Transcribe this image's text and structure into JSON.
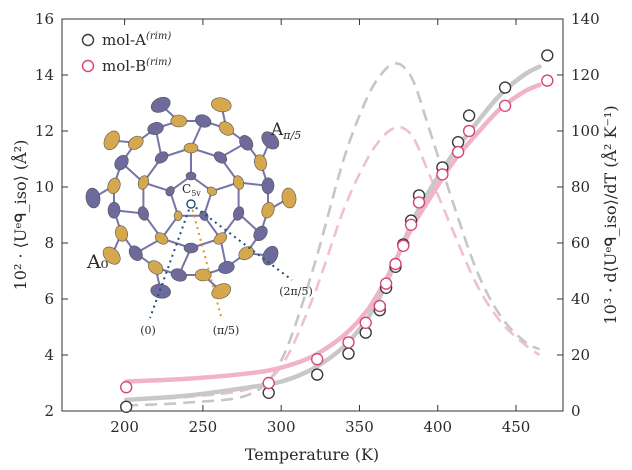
{
  "chart_data": {
    "type": "scatter",
    "xlabel": "Temperature (K)",
    "ylabel_left": "10² · ⟨Uᵉᑫ_iso⟩ (Å²)",
    "ylabel_right": "10³ · d⟨Uᵉᑫ_iso⟩/dT (Å² K⁻¹)",
    "xlim": [
      160,
      480
    ],
    "ylim_left": [
      2,
      16
    ],
    "ylim_right": [
      0,
      140
    ],
    "x_ticks": [
      "200",
      "250",
      "300",
      "350",
      "400",
      "450"
    ],
    "y_ticks_left": [
      "2",
      "4",
      "6",
      "8",
      "10",
      "12",
      "14",
      "16"
    ],
    "y_ticks_right": [
      "0",
      "20",
      "40",
      "60",
      "80",
      "100",
      "120",
      "140"
    ],
    "grid": false,
    "legend_position": "top-left",
    "colors": {
      "mol_A": "#3a3a3a",
      "mol_B": "#d6467a",
      "fit_A": "#c8c8c8",
      "fit_B": "#f0b4c6",
      "deriv_A": "#c6c6c6",
      "deriv_B": "#f0c0cf",
      "atom_gold": "#d6a84e",
      "atom_purple": "#6f6a9c",
      "bond": "#7775a8"
    },
    "series": [
      {
        "name": "mol-A",
        "name_sup": "(rim)",
        "marker": "open-circle",
        "axis": "left",
        "x": [
          201,
          292,
          323,
          343,
          354,
          363,
          367,
          373,
          378,
          383,
          388,
          403,
          413,
          420,
          443,
          470
        ],
        "y": [
          2.15,
          2.65,
          3.3,
          4.05,
          4.8,
          5.6,
          6.4,
          7.15,
          7.95,
          8.8,
          9.7,
          10.7,
          11.6,
          12.55,
          13.55,
          14.7
        ]
      },
      {
        "name": "mol-B",
        "name_sup": "(rim)",
        "marker": "open-circle",
        "axis": "left",
        "x": [
          201,
          292,
          323,
          343,
          354,
          363,
          367,
          373,
          378,
          383,
          388,
          403,
          413,
          420,
          443,
          470
        ],
        "y": [
          2.85,
          3.0,
          3.85,
          4.45,
          5.15,
          5.75,
          6.55,
          7.25,
          7.9,
          8.65,
          9.45,
          10.45,
          11.25,
          12.0,
          12.9,
          13.8
        ]
      },
      {
        "name": "",
        "style": "solid-fit",
        "axis": "left",
        "x": [
          201,
          240,
          280,
          300,
          320,
          340,
          355,
          365,
          375,
          385,
          395,
          410,
          425,
          440,
          455,
          465
        ],
        "y": [
          2.4,
          2.55,
          2.85,
          3.05,
          3.5,
          4.3,
          5.3,
          6.3,
          7.6,
          8.9,
          9.9,
          11.2,
          12.3,
          13.3,
          14.0,
          14.3
        ]
      },
      {
        "name": "",
        "style": "solid-fit",
        "axis": "left",
        "x": [
          201,
          240,
          280,
          300,
          320,
          340,
          355,
          365,
          375,
          385,
          395,
          410,
          425,
          440,
          455,
          465
        ],
        "y": [
          3.05,
          3.15,
          3.35,
          3.55,
          3.95,
          4.7,
          5.6,
          6.5,
          7.6,
          8.7,
          9.6,
          10.9,
          11.9,
          12.8,
          13.4,
          13.65
        ]
      },
      {
        "name": "",
        "style": "dashed-derivative",
        "axis": "right",
        "x": [
          201,
          240,
          280,
          300,
          320,
          340,
          355,
          365,
          372,
          378,
          385,
          395,
          410,
          425,
          440,
          455,
          465
        ],
        "y": [
          2,
          3,
          6,
          18,
          50,
          90,
          112,
          121,
          124,
          123,
          117,
          100,
          74,
          50,
          34,
          25,
          22
        ]
      },
      {
        "name": "",
        "style": "dashed-derivative",
        "axis": "right",
        "x": [
          201,
          240,
          280,
          300,
          320,
          340,
          355,
          365,
          372,
          378,
          385,
          395,
          410,
          425,
          440,
          455,
          465
        ],
        "y": [
          4,
          5,
          8,
          16,
          40,
          72,
          90,
          98,
          101,
          101,
          97,
          84,
          64,
          45,
          32,
          24,
          20
        ]
      }
    ],
    "inset": {
      "labels": {
        "a0": "A₀",
        "api5": "A",
        "api5_sub": "π/5",
        "c5v": "C",
        "c5v_sub": "5v",
        "dir0": "(0)",
        "dir_pi5": "(π/5)",
        "dir_2pi5": "(2π/5)"
      }
    }
  }
}
